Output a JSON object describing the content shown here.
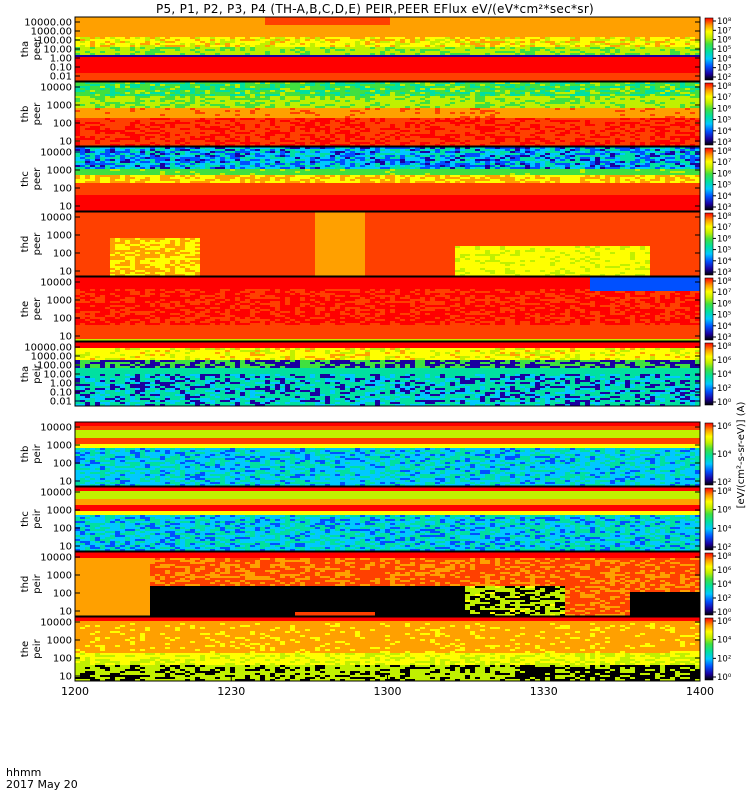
{
  "title": "P5, P1, P2, P3, P4 (TH-A,B,C,D,E) PEIR,PEER EFlux eV/(eV*cm²*sec*sr)",
  "colorbar_unit_label": "[eV/(cm²-s-sr-eV)] (A)",
  "footer": {
    "time_format": "hhmm",
    "date": "2017 May 20"
  },
  "chart_data": {
    "type": "heatmap",
    "x_axis": {
      "range_hhmm": [
        "1200",
        "1400"
      ],
      "tick_labels": [
        "1200",
        "1230",
        "1300",
        "1330",
        "1400"
      ]
    },
    "colormap": [
      "#000000",
      "#1a00a0",
      "#0050ff",
      "#00c8ff",
      "#00e0a0",
      "#40e040",
      "#c0f000",
      "#ffff00",
      "#ffa000",
      "#ff4000",
      "#ff0000"
    ],
    "panels": [
      {
        "probe": "tha",
        "species": "peer",
        "ylabel": [
          "tha",
          "peer"
        ],
        "yticks": [
          "10000.00",
          "1000.00",
          "100.00",
          "10.00",
          "1.00",
          "0.10",
          "0.01"
        ],
        "cbar_ticks": [
          "10⁸",
          "10⁷",
          "10⁶",
          "10⁵",
          "10⁴",
          "10³",
          "10²"
        ],
        "style": "peer_a"
      },
      {
        "probe": "thb",
        "species": "peer",
        "ylabel": [
          "thb",
          "peer"
        ],
        "yticks": [
          "10000",
          "1000",
          "100",
          "10"
        ],
        "cbar_ticks": [
          "10⁸",
          "10⁷",
          "10⁶",
          "10⁵",
          "10⁴",
          "10³"
        ],
        "style": "peer_b"
      },
      {
        "probe": "thc",
        "species": "peer",
        "ylabel": [
          "thc",
          "peer"
        ],
        "yticks": [
          "10000",
          "1000",
          "100",
          "10"
        ],
        "cbar_ticks": [
          "10⁸",
          "10⁷",
          "10⁶",
          "10⁵",
          "10⁴",
          "10³"
        ],
        "style": "peer_c"
      },
      {
        "probe": "thd",
        "species": "peer",
        "ylabel": [
          "thd",
          "peer"
        ],
        "yticks": [
          "10000",
          "1000",
          "100",
          "10"
        ],
        "cbar_ticks": [
          "10⁸",
          "10⁷",
          "10⁶",
          "10⁵",
          "10⁴",
          "10³"
        ],
        "style": "peer_d"
      },
      {
        "probe": "the",
        "species": "peer",
        "ylabel": [
          "the",
          "peer"
        ],
        "yticks": [
          "10000",
          "1000",
          "100",
          "10"
        ],
        "cbar_ticks": [
          "10⁸",
          "10⁷",
          "10⁶",
          "10⁵",
          "10⁴",
          "10³"
        ],
        "style": "peer_e"
      },
      {
        "probe": "tha",
        "species": "peir",
        "ylabel": [
          "tha",
          "peir"
        ],
        "yticks": [
          "10000.00",
          "1000.00",
          "100.00",
          "10.00",
          "1.00",
          "0.10",
          "0.01"
        ],
        "cbar_ticks": [
          "10⁸",
          "10⁶",
          "10⁴",
          "10²",
          "10⁰"
        ],
        "style": "peir_a"
      },
      {
        "probe": "thb",
        "species": "peir",
        "ylabel": [
          "thb",
          "peir"
        ],
        "yticks": [
          "10000",
          "1000",
          "100",
          "10"
        ],
        "cbar_ticks": [
          "10⁶",
          "10⁴",
          "10²"
        ],
        "style": "peir_b"
      },
      {
        "probe": "thc",
        "species": "peir",
        "ylabel": [
          "thc",
          "peir"
        ],
        "yticks": [
          "10000",
          "1000",
          "100",
          "10"
        ],
        "cbar_ticks": [
          "10⁸",
          "10⁶",
          "10⁴",
          "10²"
        ],
        "style": "peir_c"
      },
      {
        "probe": "thd",
        "species": "peir",
        "ylabel": [
          "thd",
          "peir"
        ],
        "yticks": [
          "10000",
          "1000",
          "100",
          "10"
        ],
        "cbar_ticks": [
          "10⁸",
          "10⁶",
          "10⁴",
          "10²",
          "10⁰"
        ],
        "style": "peir_d"
      },
      {
        "probe": "the",
        "species": "peir",
        "ylabel": [
          "the",
          "peir"
        ],
        "yticks": [
          "10000",
          "1000",
          "100",
          "10"
        ],
        "cbar_ticks": [
          "10⁶",
          "10⁴",
          "10²",
          "10⁰"
        ],
        "style": "peir_e"
      }
    ]
  }
}
